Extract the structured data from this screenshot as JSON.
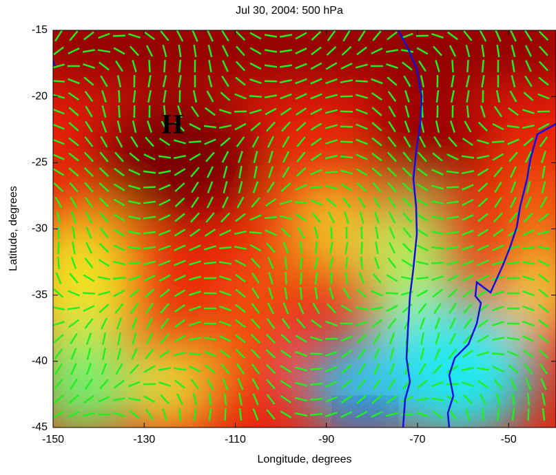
{
  "chart_data": {
    "type": "heatmap-quiver",
    "title": "Jul 30, 2004: 500 hPa",
    "xlabel": "Longitude, degrees",
    "ylabel": "Latitude, degrees",
    "xlim": [
      -150,
      -39.6
    ],
    "ylim": [
      -45,
      -15
    ],
    "xticks": [
      -150,
      -130,
      -110,
      -90,
      -70,
      -50
    ],
    "yticks": [
      -45,
      -40,
      -35,
      -30,
      -25,
      -20,
      -15
    ],
    "annotations": [
      {
        "text": "H",
        "x": -123.8,
        "y": -22.3
      }
    ],
    "arrow_color": "#22ee22",
    "coast_color": "#1010dd"
  }
}
